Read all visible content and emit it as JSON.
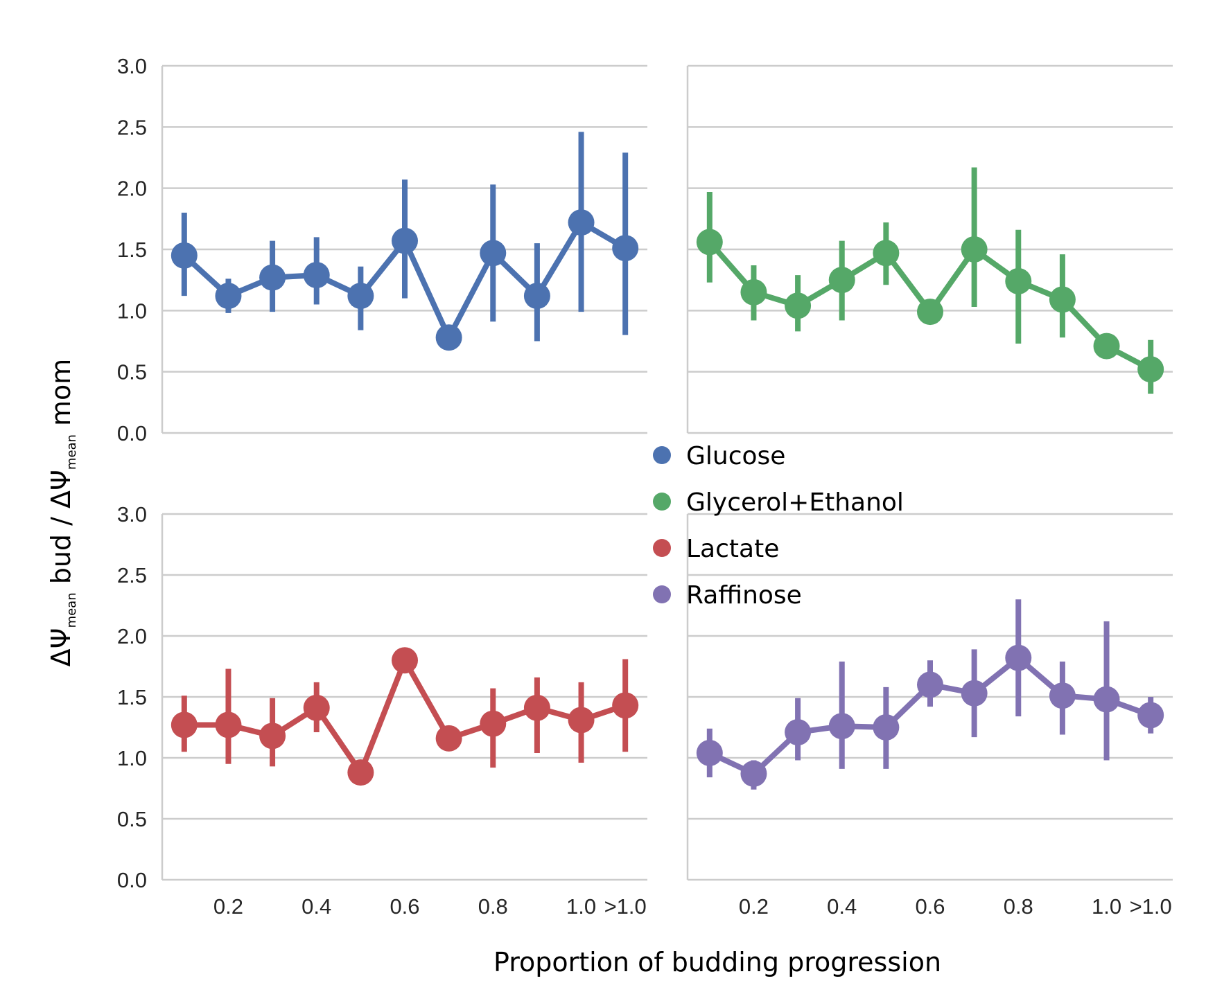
{
  "ylabel": {
    "part1": "ΔΨ",
    "sub1": "mean",
    "part2": " bud / ΔΨ",
    "sub2": "mean",
    "part3": " mom"
  },
  "xlabel": "Proportion of budding progression",
  "legend": {
    "placement": "center",
    "items": [
      {
        "label": "Glucose",
        "color": "#4c72b0"
      },
      {
        "label": "Glycerol+Ethanol",
        "color": "#55a868"
      },
      {
        "label": "Lactate",
        "color": "#c44e52"
      },
      {
        "label": "Raffinose",
        "color": "#8172b2"
      }
    ]
  },
  "chart_data": {
    "type": "line",
    "layout": "2x2 shared axes",
    "ylim": [
      0,
      3.0
    ],
    "yticks": [
      "0.0",
      "0.5",
      "1.0",
      "1.5",
      "2.0",
      "2.5",
      "3.0"
    ],
    "x": [
      "0.1",
      "0.2",
      "0.3",
      "0.4",
      "0.5",
      "0.6",
      "0.7",
      "0.8",
      "0.9",
      "1.0",
      ">1.0"
    ],
    "xtick_labels": [
      "",
      "0.2",
      "",
      "0.4",
      "",
      "0.6",
      "",
      "0.8",
      "",
      "1.0",
      ">1.0"
    ],
    "grid": "horizontal",
    "panels": [
      {
        "series": "Glucose",
        "color": "#4c72b0",
        "values": [
          1.45,
          1.12,
          1.27,
          1.29,
          1.12,
          1.57,
          0.78,
          1.47,
          1.12,
          1.72,
          1.51
        ],
        "ci_low": [
          1.12,
          0.98,
          0.99,
          1.05,
          0.84,
          1.1,
          0.78,
          0.91,
          0.75,
          0.99,
          0.8
        ],
        "ci_high": [
          1.8,
          1.26,
          1.57,
          1.6,
          1.36,
          2.07,
          0.78,
          2.03,
          1.55,
          2.46,
          2.29
        ]
      },
      {
        "series": "Glycerol+Ethanol",
        "color": "#55a868",
        "values": [
          1.56,
          1.15,
          1.04,
          1.25,
          1.47,
          0.99,
          1.5,
          1.24,
          1.09,
          0.71,
          0.52
        ],
        "ci_low": [
          1.23,
          0.92,
          0.83,
          0.92,
          1.21,
          0.99,
          1.03,
          0.73,
          0.78,
          0.61,
          0.32
        ],
        "ci_high": [
          1.97,
          1.37,
          1.29,
          1.57,
          1.72,
          0.99,
          2.17,
          1.66,
          1.46,
          0.81,
          0.76
        ]
      },
      {
        "series": "Lactate",
        "color": "#c44e52",
        "values": [
          1.27,
          1.27,
          1.18,
          1.41,
          0.88,
          1.8,
          1.16,
          1.28,
          1.41,
          1.31,
          1.43
        ],
        "ci_low": [
          1.05,
          0.95,
          0.93,
          1.21,
          0.88,
          1.8,
          1.16,
          0.92,
          1.04,
          0.96,
          1.05
        ],
        "ci_high": [
          1.51,
          1.73,
          1.49,
          1.62,
          0.88,
          1.8,
          1.16,
          1.57,
          1.66,
          1.62,
          1.81
        ]
      },
      {
        "series": "Raffinose",
        "color": "#8172b2",
        "values": [
          1.04,
          0.87,
          1.21,
          1.26,
          1.25,
          1.6,
          1.53,
          1.82,
          1.51,
          1.48,
          1.35
        ],
        "ci_low": [
          0.84,
          0.74,
          0.98,
          0.91,
          0.91,
          1.42,
          1.17,
          1.34,
          1.19,
          0.98,
          1.2
        ],
        "ci_high": [
          1.24,
          0.98,
          1.49,
          1.79,
          1.58,
          1.8,
          1.89,
          2.3,
          1.79,
          2.12,
          1.5
        ]
      }
    ]
  }
}
